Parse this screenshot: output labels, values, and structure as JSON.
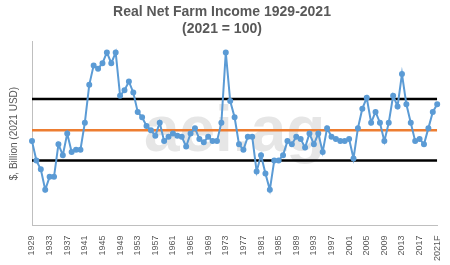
{
  "chart_data": {
    "type": "line",
    "title": "Real Net Farm Income 1929-2021",
    "subtitle": "(2021 = 100)",
    "y_label": "$, Billion (2021 USD)",
    "watermark": "aei.ag",
    "categories": [
      "1929",
      null,
      null,
      null,
      "1933",
      null,
      null,
      null,
      "1937",
      null,
      null,
      null,
      "1941",
      null,
      null,
      null,
      "1945",
      null,
      null,
      null,
      "1949",
      null,
      null,
      null,
      "1953",
      null,
      null,
      null,
      "1957",
      null,
      null,
      null,
      "1961",
      null,
      null,
      null,
      "1965",
      null,
      null,
      null,
      "1969",
      null,
      null,
      null,
      "1973",
      null,
      null,
      null,
      "1977",
      null,
      null,
      null,
      "1981",
      null,
      null,
      null,
      "1985",
      null,
      null,
      null,
      "1989",
      null,
      null,
      null,
      "1993",
      null,
      null,
      null,
      "1997",
      null,
      null,
      null,
      "2001",
      null,
      null,
      null,
      "2005",
      null,
      null,
      null,
      "2009",
      null,
      null,
      null,
      "2013",
      null,
      null,
      null,
      "2017",
      null,
      null,
      null,
      "2021F"
    ],
    "values": [
      78,
      60,
      52,
      33,
      45,
      45,
      75,
      65,
      85,
      68,
      70,
      70,
      95,
      130,
      148,
      145,
      150,
      160,
      150,
      160,
      120,
      125,
      133,
      123,
      105,
      100,
      92,
      88,
      83,
      95,
      78,
      82,
      85,
      83,
      82,
      73,
      85,
      90,
      80,
      77,
      82,
      78,
      78,
      95,
      160,
      115,
      100,
      75,
      70,
      82,
      82,
      50,
      65,
      48,
      33,
      60,
      60,
      65,
      78,
      75,
      82,
      80,
      72,
      85,
      75,
      85,
      68,
      90,
      82,
      80,
      78,
      78,
      80,
      62,
      90,
      108,
      118,
      95,
      105,
      95,
      78,
      95,
      120,
      110,
      140,
      112,
      95,
      78,
      80,
      75,
      90,
      105,
      112
    ],
    "color": "#5b9bd5",
    "marker": "circle",
    "line_style": "solid",
    "hlines": [
      {
        "value": 117,
        "color": "#000000"
      },
      {
        "value": 88,
        "color": "#ed7d31"
      },
      {
        "value": 60,
        "color": "#000000"
      }
    ],
    "ylim": [
      0,
      170
    ],
    "tick_labels": "x",
    "grid": false
  }
}
